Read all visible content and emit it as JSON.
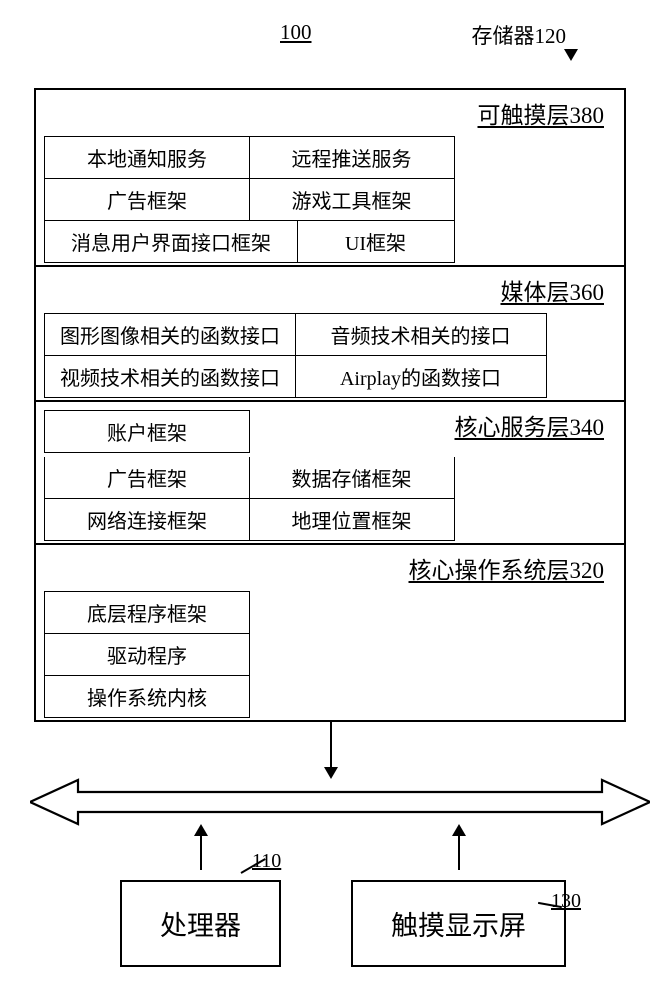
{
  "header": {
    "system_ref": "100",
    "storage_label": "存储器",
    "storage_ref": "120"
  },
  "layers": [
    {
      "title": "可触摸层",
      "ref": "380",
      "rows": [
        [
          "本地通知服务",
          "远程推送服务"
        ],
        [
          "广告框架",
          "游戏工具框架"
        ],
        [
          "消息用户界面接口框架",
          "UI框架"
        ]
      ],
      "row_classes": [
        [
          "w1",
          "w2"
        ],
        [
          "w1",
          "w2"
        ],
        [
          "wmsg1",
          "wmsg2"
        ]
      ]
    },
    {
      "title": "媒体层",
      "ref": "360",
      "rows": [
        [
          "图形图像相关的函数接口",
          "音频技术相关的接口"
        ],
        [
          "视频技术相关的函数接口",
          "Airplay的函数接口"
        ]
      ],
      "row_classes": [
        [
          "ww1",
          "ww2"
        ],
        [
          "ww1",
          "ww2"
        ]
      ]
    },
    {
      "title": "核心服务层",
      "ref": "340",
      "rows": [
        [
          "账户框架"
        ],
        [
          "广告框架",
          "数据存储框架"
        ],
        [
          "网络连接框架",
          "地理位置框架"
        ]
      ],
      "row_classes": [
        [
          "w1"
        ],
        [
          "w1",
          "w2"
        ],
        [
          "w1",
          "w2"
        ]
      ]
    },
    {
      "title": "核心操作系统层",
      "ref": "320",
      "rows": [
        [
          "底层程序框架"
        ],
        [
          "驱动程序"
        ],
        [
          "操作系统内核"
        ]
      ],
      "row_classes": [
        [
          "w1"
        ],
        [
          "w1"
        ],
        [
          "w1"
        ]
      ]
    }
  ],
  "bottom": {
    "processor_label": "处理器",
    "processor_ref": "110",
    "touch_label": "触摸显示屏",
    "touch_ref": "130"
  },
  "style": {
    "font_color": "#000000",
    "border_color": "#000000",
    "bg_color": "#ffffff"
  }
}
